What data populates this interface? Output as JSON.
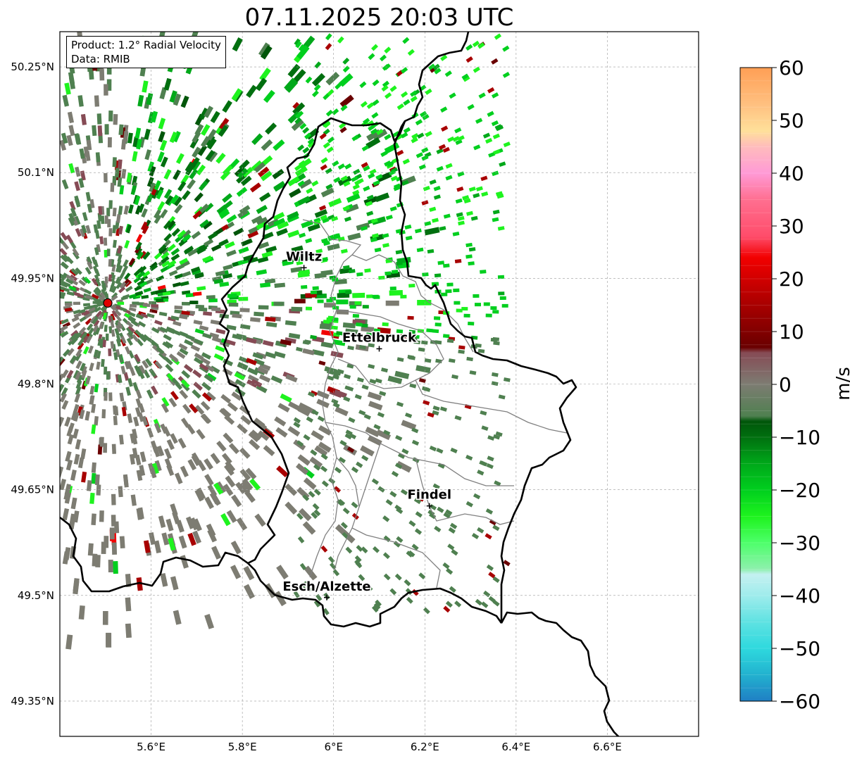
{
  "title": "07.11.2025 20:03 UTC",
  "legend": {
    "product": "Product: 1.2° Radial Velocity",
    "source": "Data: RMIB"
  },
  "map": {
    "lon_range": [
      5.4,
      6.8
    ],
    "lat_range": [
      49.3,
      50.3
    ],
    "lon_ticks": [
      {
        "value": 5.6,
        "label": "5.6°E"
      },
      {
        "value": 5.8,
        "label": "5.8°E"
      },
      {
        "value": 6.0,
        "label": "6°E"
      },
      {
        "value": 6.2,
        "label": "6.2°E"
      },
      {
        "value": 6.4,
        "label": "6.4°E"
      },
      {
        "value": 6.6,
        "label": "6.6°E"
      }
    ],
    "lat_ticks": [
      {
        "value": 50.25,
        "label": "50.25°N"
      },
      {
        "value": 50.1,
        "label": "50.1°N"
      },
      {
        "value": 49.95,
        "label": "49.95°N"
      },
      {
        "value": 49.8,
        "label": "49.8°N"
      },
      {
        "value": 49.65,
        "label": "49.65°N"
      },
      {
        "value": 49.5,
        "label": "49.5°N"
      },
      {
        "value": 49.35,
        "label": "49.35°N"
      }
    ],
    "radar_site": {
      "lon": 5.505,
      "lat": 49.915,
      "color": "#e00000"
    },
    "cities": [
      {
        "name": "Wiltz",
        "lon": 5.935,
        "lat": 49.965
      },
      {
        "name": "Ettelbruck",
        "lon": 6.1,
        "lat": 49.85
      },
      {
        "name": "Findel",
        "lon": 6.21,
        "lat": 49.627
      },
      {
        "name": "Esch/Alzette",
        "lon": 5.985,
        "lat": 49.497
      }
    ],
    "grid": true
  },
  "colorbar": {
    "label": "m/s",
    "vmin": -60,
    "vmax": 60,
    "ticks": [
      {
        "value": 60,
        "label": "60"
      },
      {
        "value": 50,
        "label": "50"
      },
      {
        "value": 40,
        "label": "40"
      },
      {
        "value": 30,
        "label": "30"
      },
      {
        "value": 20,
        "label": "20"
      },
      {
        "value": 10,
        "label": "10"
      },
      {
        "value": 0,
        "label": "0"
      },
      {
        "value": -10,
        "label": "−10"
      },
      {
        "value": -20,
        "label": "−20"
      },
      {
        "value": -30,
        "label": "−30"
      },
      {
        "value": -40,
        "label": "−40"
      },
      {
        "value": -50,
        "label": "−50"
      },
      {
        "value": -60,
        "label": "−60"
      }
    ],
    "stops": [
      {
        "value": -60,
        "color": "#1f7fc4"
      },
      {
        "value": -55,
        "color": "#22b2cf"
      },
      {
        "value": -50,
        "color": "#2ed9de"
      },
      {
        "value": -45,
        "color": "#5fe2e2"
      },
      {
        "value": -40,
        "color": "#9fecec"
      },
      {
        "value": -36,
        "color": "#c4f0f0"
      },
      {
        "value": -35,
        "color": "#8ef0ad"
      },
      {
        "value": -30,
        "color": "#4dff6a"
      },
      {
        "value": -25,
        "color": "#1ef31e"
      },
      {
        "value": -20,
        "color": "#00cf1e"
      },
      {
        "value": -15,
        "color": "#00a81a"
      },
      {
        "value": -10,
        "color": "#006f0f"
      },
      {
        "value": -7,
        "color": "#00560a"
      },
      {
        "value": -6,
        "color": "#4f8050"
      },
      {
        "value": 0,
        "color": "#7d7c72"
      },
      {
        "value": 6,
        "color": "#864b55"
      },
      {
        "value": 7,
        "color": "#6a0000"
      },
      {
        "value": 15,
        "color": "#a80000"
      },
      {
        "value": 24,
        "color": "#f20000"
      },
      {
        "value": 28,
        "color": "#ff4c6a"
      },
      {
        "value": 35,
        "color": "#ff6f90"
      },
      {
        "value": 40,
        "color": "#ff9ad6"
      },
      {
        "value": 45,
        "color": "#ffbcbc"
      },
      {
        "value": 48,
        "color": "#ffe09a"
      },
      {
        "value": 53,
        "color": "#ffc080"
      },
      {
        "value": 60,
        "color": "#ff9f55"
      }
    ]
  }
}
